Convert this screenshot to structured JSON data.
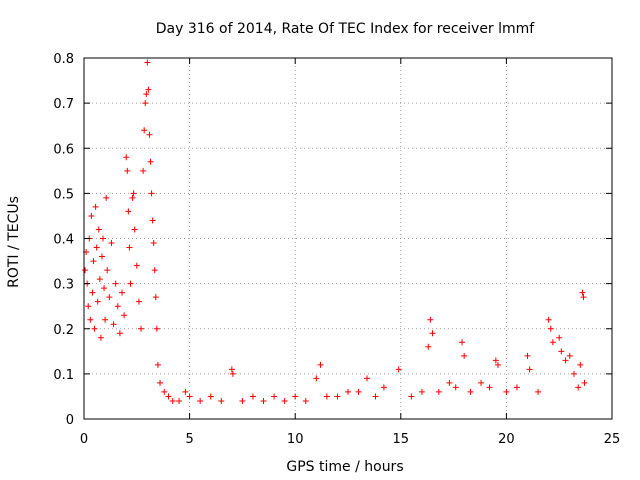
{
  "chart_data": {
    "type": "scatter",
    "title": "Day 316 of 2014, Rate Of TEC Index for receiver lmmf",
    "xlabel": "GPS time / hours",
    "ylabel": "ROTI / TECUs",
    "xlim": [
      0,
      25
    ],
    "ylim": [
      0,
      0.8
    ],
    "xticks": [
      0,
      5,
      10,
      15,
      20,
      25
    ],
    "yticks": [
      0,
      0.1,
      0.2,
      0.3,
      0.4,
      0.5,
      0.6,
      0.7,
      0.8
    ],
    "xtick_labels": [
      "0",
      "5",
      "10",
      "15",
      "20",
      "25"
    ],
    "ytick_labels": [
      "0",
      "0.1",
      "0.2",
      "0.3",
      "0.4",
      "0.5",
      "0.6",
      "0.7",
      "0.8"
    ],
    "grid": true,
    "marker": "+",
    "series_color": "#ff0000",
    "series": [
      {
        "name": "ROTI",
        "points": [
          [
            0.05,
            0.33
          ],
          [
            0.1,
            0.37
          ],
          [
            0.15,
            0.3
          ],
          [
            0.2,
            0.25
          ],
          [
            0.25,
            0.4
          ],
          [
            0.3,
            0.22
          ],
          [
            0.35,
            0.45
          ],
          [
            0.4,
            0.28
          ],
          [
            0.45,
            0.35
          ],
          [
            0.5,
            0.2
          ],
          [
            0.55,
            0.47
          ],
          [
            0.6,
            0.38
          ],
          [
            0.65,
            0.26
          ],
          [
            0.7,
            0.42
          ],
          [
            0.75,
            0.31
          ],
          [
            0.8,
            0.18
          ],
          [
            0.85,
            0.36
          ],
          [
            0.9,
            0.4
          ],
          [
            0.95,
            0.29
          ],
          [
            1.0,
            0.22
          ],
          [
            1.05,
            0.49
          ],
          [
            1.1,
            0.33
          ],
          [
            1.2,
            0.27
          ],
          [
            1.3,
            0.39
          ],
          [
            1.4,
            0.21
          ],
          [
            1.5,
            0.3
          ],
          [
            1.6,
            0.25
          ],
          [
            1.7,
            0.19
          ],
          [
            1.8,
            0.28
          ],
          [
            1.9,
            0.23
          ],
          [
            2.0,
            0.58
          ],
          [
            2.05,
            0.55
          ],
          [
            2.1,
            0.46
          ],
          [
            2.15,
            0.38
          ],
          [
            2.2,
            0.3
          ],
          [
            2.3,
            0.49
          ],
          [
            2.35,
            0.5
          ],
          [
            2.4,
            0.42
          ],
          [
            2.5,
            0.34
          ],
          [
            2.6,
            0.26
          ],
          [
            2.7,
            0.2
          ],
          [
            2.8,
            0.55
          ],
          [
            2.85,
            0.64
          ],
          [
            2.9,
            0.7
          ],
          [
            2.95,
            0.72
          ],
          [
            3.0,
            0.79
          ],
          [
            3.05,
            0.73
          ],
          [
            3.1,
            0.63
          ],
          [
            3.15,
            0.57
          ],
          [
            3.2,
            0.5
          ],
          [
            3.25,
            0.44
          ],
          [
            3.3,
            0.39
          ],
          [
            3.35,
            0.33
          ],
          [
            3.4,
            0.27
          ],
          [
            3.45,
            0.2
          ],
          [
            3.5,
            0.12
          ],
          [
            3.6,
            0.08
          ],
          [
            3.8,
            0.06
          ],
          [
            4.0,
            0.05
          ],
          [
            4.2,
            0.04
          ],
          [
            4.5,
            0.04
          ],
          [
            4.8,
            0.06
          ],
          [
            5.0,
            0.05
          ],
          [
            5.5,
            0.04
          ],
          [
            6.0,
            0.05
          ],
          [
            6.5,
            0.04
          ],
          [
            7.0,
            0.11
          ],
          [
            7.05,
            0.1
          ],
          [
            7.5,
            0.04
          ],
          [
            8.0,
            0.05
          ],
          [
            8.5,
            0.04
          ],
          [
            9.0,
            0.05
          ],
          [
            9.5,
            0.04
          ],
          [
            10.0,
            0.05
          ],
          [
            10.5,
            0.04
          ],
          [
            11.0,
            0.09
          ],
          [
            11.2,
            0.12
          ],
          [
            11.5,
            0.05
          ],
          [
            12.0,
            0.05
          ],
          [
            12.5,
            0.06
          ],
          [
            13.0,
            0.06
          ],
          [
            13.4,
            0.09
          ],
          [
            13.8,
            0.05
          ],
          [
            14.2,
            0.07
          ],
          [
            14.9,
            0.11
          ],
          [
            15.5,
            0.05
          ],
          [
            16.0,
            0.06
          ],
          [
            16.3,
            0.16
          ],
          [
            16.4,
            0.22
          ],
          [
            16.5,
            0.19
          ],
          [
            16.8,
            0.06
          ],
          [
            17.3,
            0.08
          ],
          [
            17.6,
            0.07
          ],
          [
            17.9,
            0.17
          ],
          [
            18.0,
            0.14
          ],
          [
            18.3,
            0.06
          ],
          [
            18.8,
            0.08
          ],
          [
            19.2,
            0.07
          ],
          [
            19.5,
            0.13
          ],
          [
            19.6,
            0.12
          ],
          [
            20.0,
            0.06
          ],
          [
            20.5,
            0.07
          ],
          [
            21.0,
            0.14
          ],
          [
            21.1,
            0.11
          ],
          [
            21.5,
            0.06
          ],
          [
            22.0,
            0.22
          ],
          [
            22.1,
            0.2
          ],
          [
            22.2,
            0.17
          ],
          [
            22.5,
            0.18
          ],
          [
            22.6,
            0.15
          ],
          [
            22.8,
            0.13
          ],
          [
            23.0,
            0.14
          ],
          [
            23.2,
            0.1
          ],
          [
            23.4,
            0.07
          ],
          [
            23.5,
            0.12
          ],
          [
            23.6,
            0.28
          ],
          [
            23.65,
            0.27
          ],
          [
            23.7,
            0.08
          ]
        ]
      }
    ]
  }
}
